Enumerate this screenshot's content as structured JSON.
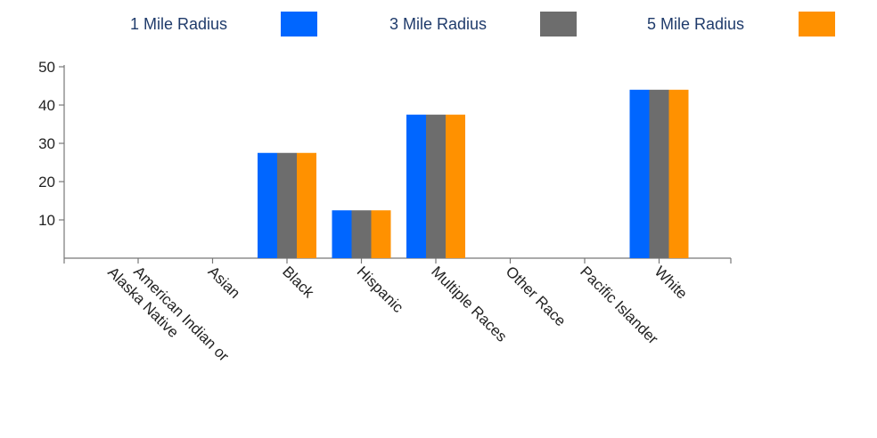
{
  "chart_data": {
    "type": "bar",
    "categories": [
      [
        "American Indian or",
        "Alaska Native"
      ],
      [
        "Asian"
      ],
      [
        "Black"
      ],
      [
        "Hispanic"
      ],
      [
        "Multiple Races"
      ],
      [
        "Other Race"
      ],
      [
        "Pacific Islander"
      ],
      [
        "White"
      ]
    ],
    "series": [
      {
        "name": "1 Mile Radius",
        "color": "#0066ff",
        "values": [
          0,
          0,
          27.5,
          12.5,
          37.5,
          0,
          0,
          44
        ]
      },
      {
        "name": "3 Mile Radius",
        "color": "#6d6d6d",
        "values": [
          0,
          0,
          27.5,
          12.5,
          37.5,
          0,
          0,
          44
        ]
      },
      {
        "name": "5 Mile Radius",
        "color": "#ff9100",
        "values": [
          0,
          0,
          27.5,
          12.5,
          37.5,
          0,
          0,
          44
        ]
      }
    ],
    "yticks": [
      10,
      20,
      30,
      40,
      50
    ],
    "ylim": [
      0,
      50
    ],
    "legend_position": "top",
    "grid": false
  }
}
